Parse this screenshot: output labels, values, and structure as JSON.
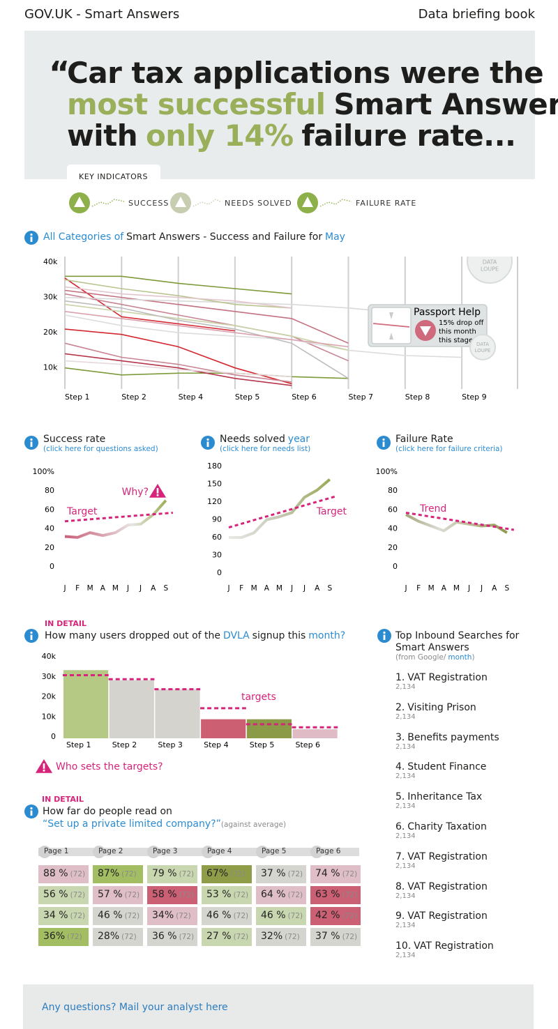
{
  "header": {
    "title": "GOV.UK - Smart Answers",
    "link": "Data briefing book"
  },
  "quote": {
    "mark": "“",
    "lines": [
      [
        {
          "text": "Car tax applications were the",
          "color": "#1d1d1b"
        }
      ],
      [
        {
          "text": "most successful",
          "color": "#9aaf5a"
        },
        {
          "text": "Smart Answer",
          "color": "#1d1d1b"
        }
      ],
      [
        {
          "text": "with",
          "color": "#1d1d1b"
        },
        {
          "text": "only 14%",
          "color": "#9aaf5a"
        },
        {
          "text": "failure rate...",
          "color": "#1d1d1b"
        }
      ]
    ]
  },
  "key_indicators": {
    "tab": "KEY INDICATORS",
    "items": [
      {
        "label": "SUCCESS",
        "color": "#8db04a"
      },
      {
        "label": "NEEDS SOLVED",
        "color": "#c7cdb0"
      },
      {
        "label": "FAILURE RATE",
        "color": "#8db04a"
      }
    ]
  },
  "chart_data": [
    {
      "type": "line",
      "title": [
        {
          "text": "All Categories of",
          "color": "#2b8bd1"
        },
        {
          "text": "Smart Answers - Success and Failure for",
          "color": "#1d1d1b"
        },
        {
          "text": "May",
          "color": "#2b8bd1"
        }
      ],
      "categories": [
        "Step 1",
        "Step 2",
        "Step 4",
        "Step 5",
        "Step 6",
        "Step 7",
        "Step 8",
        "Step 9"
      ],
      "ylim": [
        4000,
        41600
      ],
      "yticks": [
        {
          "value": 10000,
          "label": "10k"
        },
        {
          "value": 20000,
          "label": "20k"
        },
        {
          "value": 30000,
          "label": "30k"
        },
        {
          "value": 40000,
          "label": "40k"
        }
      ],
      "grid": false,
      "series": [
        {
          "color": "#7d9a3a",
          "values": [
            36000,
            36000,
            34000,
            32500,
            31000,
            null,
            null,
            null
          ]
        },
        {
          "color": "#7d9a3a",
          "values": [
            10000,
            8000,
            8500,
            8500,
            7500,
            7000,
            null,
            null
          ]
        },
        {
          "color": "#d3262e",
          "values": [
            35500,
            24500,
            22500,
            20500,
            null,
            null,
            null,
            null
          ]
        },
        {
          "color": "#d3262e",
          "values": [
            21000,
            19500,
            16000,
            10000,
            5500,
            null,
            null,
            null
          ]
        },
        {
          "color": "#b5354a",
          "values": [
            14000,
            12000,
            10000,
            7000,
            5000,
            null,
            null,
            null
          ]
        },
        {
          "color": "#c4707f",
          "values": [
            32000,
            30000,
            28000,
            26000,
            24000,
            17000,
            null,
            null
          ]
        },
        {
          "color": "#c98593",
          "values": [
            31000,
            28000,
            25000,
            22000,
            19000,
            12000,
            null,
            null
          ]
        },
        {
          "color": "#c98593",
          "values": [
            17000,
            13000,
            11000,
            8000,
            6000,
            null,
            null,
            null
          ]
        },
        {
          "color": "#d9d9d9",
          "values": [
            30000,
            29500,
            29000,
            28500,
            28000,
            27000,
            25500,
            null
          ]
        },
        {
          "color": "#dcdcdc",
          "values": [
            25000,
            22000,
            20000,
            19000,
            18000,
            15000,
            13500,
            13000
          ]
        },
        {
          "color": "#b9c48e",
          "values": [
            35000,
            32500,
            30500,
            28000,
            27000,
            null,
            null,
            null
          ]
        },
        {
          "color": "#c9d3a8",
          "values": [
            28000,
            26000,
            24000,
            22000,
            19000,
            15000,
            null,
            null
          ]
        },
        {
          "color": "#e2c6cd",
          "values": [
            33000,
            31000,
            30000,
            29000,
            27000,
            null,
            null,
            null
          ]
        },
        {
          "color": "#bdbdbd",
          "values": [
            29000,
            27000,
            23500,
            21000,
            17000,
            7000,
            null,
            null
          ]
        },
        {
          "color": "#e6d7db",
          "values": [
            12000,
            11000,
            9500,
            8500,
            7500,
            null,
            null,
            null
          ]
        },
        {
          "color": "#d9a1ad",
          "values": [
            26000,
            24000,
            22000,
            20000,
            18000,
            16000,
            null,
            null
          ]
        }
      ],
      "loupe_label": [
        "DATA",
        "LOUPE"
      ],
      "callout": {
        "title": "Passport Help",
        "lines": [
          "15% drop off",
          "this month",
          "this stage"
        ],
        "color": "#cf6a7c"
      }
    },
    {
      "type": "trend",
      "title": [
        {
          "text": "Success rate",
          "color": "#1d1d1b"
        }
      ],
      "subtitle": "(click here for questions asked)",
      "categories": [
        "J",
        "F",
        "M",
        "A",
        "M",
        "J",
        "J",
        "A",
        "S"
      ],
      "values": [
        32,
        31,
        36,
        33,
        36,
        44,
        45,
        55,
        70
      ],
      "colors": [
        "#c9627a",
        "#d79aa8",
        "#e6e6e2",
        "#9daf5b"
      ],
      "ylim": [
        0,
        100
      ],
      "yticks": [
        0,
        20,
        40,
        60,
        80,
        {
          "value": 100,
          "label": "100%"
        }
      ],
      "reference": {
        "label": "Target",
        "start": 48,
        "end": 57,
        "color": "#d6247a"
      },
      "annotation": "Why?"
    },
    {
      "type": "trend",
      "title": [
        {
          "text": "Needs solved",
          "color": "#1d1d1b"
        },
        {
          "text": "year",
          "color": "#2b8bd1"
        }
      ],
      "subtitle": "(click here for needs list)",
      "categories": [
        "J",
        "F",
        "M",
        "A",
        "M",
        "J",
        "J",
        "A",
        "S"
      ],
      "values": [
        60,
        60,
        68,
        90,
        95,
        102,
        128,
        140,
        158
      ],
      "colors": [
        "#e8e9e5",
        "#c5c8b6",
        "#9aab55"
      ],
      "ylim": [
        0,
        180
      ],
      "yticks": [
        0,
        30,
        60,
        90,
        120,
        150,
        180
      ],
      "reference": {
        "label": "Target",
        "start": 77,
        "end": 130,
        "color": "#d6247a"
      }
    },
    {
      "type": "trend",
      "title": [
        {
          "text": "Failure Rate",
          "color": "#1d1d1b"
        }
      ],
      "subtitle": "(click here for failure criteria)",
      "categories": [
        "J",
        "F",
        "M",
        "A",
        "M",
        "J",
        "J",
        "A",
        "S"
      ],
      "values": [
        55,
        48,
        43,
        38,
        47,
        45,
        43,
        44,
        36
      ],
      "colors": [
        "#a5a57a",
        "#dcdcd6",
        "#b9b98f",
        "#8e9a4e"
      ],
      "ylim": [
        0,
        100
      ],
      "yticks": [
        0,
        20,
        40,
        60,
        80,
        {
          "value": 100,
          "label": "100%"
        }
      ],
      "reference": {
        "label": "Trend",
        "start": 57,
        "end": 39,
        "color": "#d6247a"
      }
    },
    {
      "type": "bar",
      "kicker": "IN DETAIL",
      "title": [
        {
          "text": "How many users dropped out of the",
          "color": "#1d1d1b"
        },
        {
          "text": "DVLA",
          "color": "#2b8bd1"
        },
        {
          "text": "signup this",
          "color": "#1d1d1b"
        },
        {
          "text": "month?",
          "color": "#2b8bd1"
        }
      ],
      "categories": [
        "Step 1",
        "Step 2",
        "Step 3",
        "Step 4",
        "Step 5",
        "Step 6"
      ],
      "values": [
        34000,
        29000,
        24500,
        9500,
        9500,
        4500
      ],
      "colors": [
        "#b5c985",
        "#d4d3ce",
        "#d4d3ce",
        "#cc5f72",
        "#8a9a47",
        "#dfbcc5"
      ],
      "targets": [
        31500,
        29500,
        24500,
        15000,
        7000,
        5500
      ],
      "targets_label": "targets",
      "target_color": "#d6247a",
      "ylim": [
        0,
        40000
      ],
      "yticks": [
        0,
        {
          "value": 10000,
          "label": "10k"
        },
        {
          "value": 20000,
          "label": "20k"
        },
        {
          "value": 30000,
          "label": "30k"
        },
        {
          "value": 40000,
          "label": "40k"
        }
      ],
      "warning": "Who sets the targets?"
    }
  ],
  "top_searches": {
    "title": "Top Inbound Searches for Smart Answers",
    "subtitle": [
      {
        "text": "(from Google/",
        "color": "#8a8a8a"
      },
      {
        "text": "month",
        "color": "#2b8bd1"
      },
      {
        "text": ")",
        "color": "#8a8a8a",
        "join": true
      }
    ],
    "items": [
      {
        "rank": "1.",
        "name": "VAT Registration",
        "count": "2,134"
      },
      {
        "rank": "2.",
        "name": "Visiting Prison",
        "count": "2,134"
      },
      {
        "rank": "3.",
        "name": "Benefits payments",
        "count": "2,134"
      },
      {
        "rank": "4.",
        "name": "Student Finance",
        "count": "2,134"
      },
      {
        "rank": "5.",
        "name": "Inheritance Tax",
        "count": "2,134"
      },
      {
        "rank": "6.",
        "name": "Charity Taxation",
        "count": "2,134"
      },
      {
        "rank": "7.",
        "name": "VAT Registration",
        "count": "2,134"
      },
      {
        "rank": "8.",
        "name": "VAT Registration",
        "count": "2,134"
      },
      {
        "rank": "9.",
        "name": "VAT Registration",
        "count": "2,134"
      },
      {
        "rank": "10.",
        "name": "VAT Registration",
        "count": "2,134"
      }
    ]
  },
  "reading_table": {
    "kicker": "IN DETAIL",
    "title": "How far do people read on",
    "link": "“Set up a private limited company?”",
    "note": "(against average)",
    "columns": [
      "Page 1",
      "Page 2",
      "Page 3",
      "Page 4",
      "Page 5",
      "Page 6"
    ],
    "rows": [
      [
        {
          "value": "88 %",
          "average": "(72)",
          "color": "#dfbec7"
        },
        {
          "value": "87%",
          "average": "(72)",
          "color": "#a3bd62"
        },
        {
          "value": "79 %",
          "average": "(72)",
          "color": "#c9d7b0"
        },
        {
          "value": "67%",
          "average": "(72)",
          "color": "#8f9c48"
        },
        {
          "value": "37 %",
          "average": "(72)",
          "color": "#d5d5d0"
        },
        {
          "value": "74 %",
          "average": "(72)",
          "color": "#dfbec7"
        }
      ],
      [
        {
          "value": "56 %",
          "average": "(72)",
          "color": "#c9d7b0"
        },
        {
          "value": "57 %",
          "average": "(72)",
          "color": "#dfbec7"
        },
        {
          "value": "58 %",
          "average": "(72)",
          "color": "#cb5f73"
        },
        {
          "value": "53 %",
          "average": "(72)",
          "color": "#c9d7b0"
        },
        {
          "value": "64 %",
          "average": "(72)",
          "color": "#dfbec7"
        },
        {
          "value": "63 %",
          "average": "(72)",
          "color": "#cb5f73"
        }
      ],
      [
        {
          "value": "34 %",
          "average": "(72)",
          "color": "#c9d7b0"
        },
        {
          "value": "46 %",
          "average": "(72)",
          "color": "#d5d5d0"
        },
        {
          "value": "34%",
          "average": "(72)",
          "color": "#dfbec7"
        },
        {
          "value": "46 %",
          "average": "(72)",
          "color": "#d5d5d0"
        },
        {
          "value": "46 %",
          "average": "(72)",
          "color": "#c9d7b0"
        },
        {
          "value": "42 %",
          "average": "(72)",
          "color": "#cb5f73"
        }
      ],
      [
        {
          "value": "36%",
          "average": "(72)",
          "color": "#a3bd62"
        },
        {
          "value": "28%",
          "average": "(72)",
          "color": "#d5d5d0"
        },
        {
          "value": "36 %",
          "average": "(72)",
          "color": "#d5d5d0"
        },
        {
          "value": "27 %",
          "average": "(72)",
          "color": "#c9d7b0"
        },
        {
          "value": "32%",
          "average": "(72)",
          "color": "#d5d5d0"
        },
        {
          "value": "37 %",
          "average": "(72)",
          "color": "#d5d5d0"
        }
      ]
    ]
  },
  "footer": {
    "link": "Any questions? Mail your analyst here"
  }
}
